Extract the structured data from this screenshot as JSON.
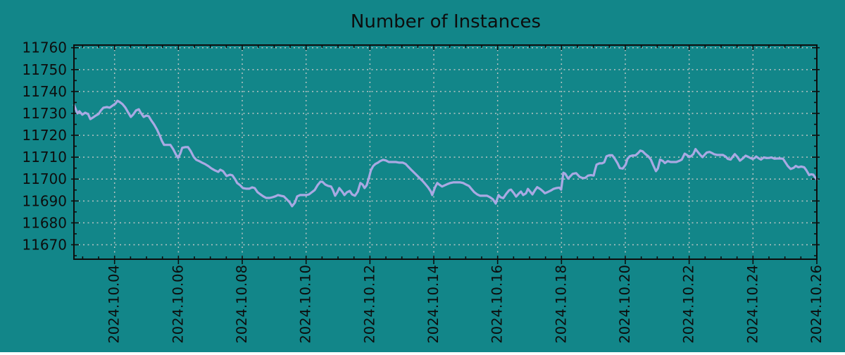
{
  "figure": {
    "background_color": "#128689",
    "axis_color": "#0d0d0d",
    "grid_color": "#b9c4c3",
    "text_color": "#0d0d0d"
  },
  "chart_data": {
    "type": "line",
    "title": "Number of Instances",
    "xlabel": "",
    "ylabel": "",
    "legend": "none",
    "grid": "dashed",
    "x_unit": "date, October 2024 (fractional day of month)",
    "x_tick_days": [
      4,
      6,
      8,
      10,
      12,
      14,
      16,
      18,
      20,
      22,
      24,
      26
    ],
    "x_tick_labels": [
      "2024.10.04",
      "2024.10.06",
      "2024.10.08",
      "2024.10.10",
      "2024.10.12",
      "2024.10.14",
      "2024.10.16",
      "2024.10.18",
      "2024.10.20",
      "2024.10.22",
      "2024.10.24",
      "2024.10.26"
    ],
    "x_minor_tick_interval_days": 0.5,
    "xlim_days": [
      2.727,
      26.0
    ],
    "y_ticks": [
      11670,
      11680,
      11690,
      11700,
      11710,
      11720,
      11730,
      11740,
      11750,
      11760
    ],
    "y_minor_tick_interval": 5,
    "ylim": [
      11663.4,
      11761.2
    ],
    "series": [
      {
        "name": "Number of Instances",
        "color": "#a9a9e3",
        "points": [
          [
            2.73,
            11733.8
          ],
          [
            2.84,
            11730.0
          ],
          [
            2.9,
            11731.0
          ],
          [
            2.99,
            11729.4
          ],
          [
            3.08,
            11730.3
          ],
          [
            3.17,
            11729.7
          ],
          [
            3.24,
            11727.4
          ],
          [
            3.32,
            11728.1
          ],
          [
            3.41,
            11729.0
          ],
          [
            3.5,
            11729.7
          ],
          [
            3.57,
            11731.3
          ],
          [
            3.65,
            11732.6
          ],
          [
            3.76,
            11732.9
          ],
          [
            3.85,
            11732.6
          ],
          [
            3.94,
            11733.6
          ],
          [
            4.03,
            11734.5
          ],
          [
            4.09,
            11735.8
          ],
          [
            4.16,
            11735.2
          ],
          [
            4.25,
            11734.2
          ],
          [
            4.34,
            11732.6
          ],
          [
            4.43,
            11730.3
          ],
          [
            4.51,
            11728.4
          ],
          [
            4.58,
            11729.4
          ],
          [
            4.67,
            11731.3
          ],
          [
            4.76,
            11731.9
          ],
          [
            4.82,
            11730.3
          ],
          [
            4.91,
            11728.4
          ],
          [
            5.0,
            11729.0
          ],
          [
            5.07,
            11728.7
          ],
          [
            5.15,
            11726.8
          ],
          [
            5.24,
            11724.9
          ],
          [
            5.33,
            11722.6
          ],
          [
            5.42,
            11719.7
          ],
          [
            5.48,
            11717.5
          ],
          [
            5.55,
            11715.6
          ],
          [
            5.66,
            11715.6
          ],
          [
            5.75,
            11715.6
          ],
          [
            5.84,
            11713.6
          ],
          [
            5.93,
            11711.0
          ],
          [
            5.99,
            11709.7
          ],
          [
            6.06,
            11711.7
          ],
          [
            6.12,
            11714.3
          ],
          [
            6.21,
            11714.6
          ],
          [
            6.3,
            11714.6
          ],
          [
            6.39,
            11712.7
          ],
          [
            6.48,
            11710.1
          ],
          [
            6.56,
            11708.8
          ],
          [
            6.65,
            11708.2
          ],
          [
            6.74,
            11707.5
          ],
          [
            6.83,
            11706.9
          ],
          [
            6.94,
            11705.9
          ],
          [
            7.03,
            11704.9
          ],
          [
            7.14,
            11704.0
          ],
          [
            7.25,
            11703.3
          ],
          [
            7.31,
            11704.3
          ],
          [
            7.4,
            11703.6
          ],
          [
            7.51,
            11701.4
          ],
          [
            7.62,
            11702.0
          ],
          [
            7.69,
            11701.7
          ],
          [
            7.78,
            11699.8
          ],
          [
            7.84,
            11698.2
          ],
          [
            7.93,
            11697.2
          ],
          [
            8.02,
            11695.9
          ],
          [
            8.13,
            11695.6
          ],
          [
            8.22,
            11695.6
          ],
          [
            8.31,
            11696.2
          ],
          [
            8.39,
            11695.9
          ],
          [
            8.48,
            11694.0
          ],
          [
            8.57,
            11693.0
          ],
          [
            8.66,
            11692.1
          ],
          [
            8.75,
            11691.4
          ],
          [
            8.86,
            11691.4
          ],
          [
            8.95,
            11691.7
          ],
          [
            9.03,
            11692.1
          ],
          [
            9.12,
            11692.7
          ],
          [
            9.21,
            11692.4
          ],
          [
            9.3,
            11692.1
          ],
          [
            9.39,
            11690.8
          ],
          [
            9.48,
            11689.5
          ],
          [
            9.56,
            11687.6
          ],
          [
            9.65,
            11689.2
          ],
          [
            9.72,
            11692.1
          ],
          [
            9.81,
            11692.7
          ],
          [
            9.92,
            11692.7
          ],
          [
            10.01,
            11692.7
          ],
          [
            10.09,
            11693.0
          ],
          [
            10.18,
            11694.0
          ],
          [
            10.27,
            11695.0
          ],
          [
            10.36,
            11697.2
          ],
          [
            10.45,
            11698.8
          ],
          [
            10.51,
            11698.8
          ],
          [
            10.6,
            11697.5
          ],
          [
            10.69,
            11696.9
          ],
          [
            10.78,
            11696.6
          ],
          [
            10.84,
            11695.0
          ],
          [
            10.91,
            11692.4
          ],
          [
            10.98,
            11694.0
          ],
          [
            11.04,
            11695.9
          ],
          [
            11.13,
            11694.3
          ],
          [
            11.2,
            11692.7
          ],
          [
            11.28,
            11694.0
          ],
          [
            11.37,
            11694.6
          ],
          [
            11.44,
            11693.0
          ],
          [
            11.53,
            11692.4
          ],
          [
            11.62,
            11694.3
          ],
          [
            11.7,
            11698.2
          ],
          [
            11.77,
            11697.5
          ],
          [
            11.83,
            11695.9
          ],
          [
            11.9,
            11697.2
          ],
          [
            11.97,
            11700.7
          ],
          [
            12.03,
            11704.0
          ],
          [
            12.1,
            11705.9
          ],
          [
            12.17,
            11706.9
          ],
          [
            12.25,
            11707.5
          ],
          [
            12.32,
            11708.2
          ],
          [
            12.41,
            11708.8
          ],
          [
            12.5,
            11708.5
          ],
          [
            12.59,
            11707.8
          ],
          [
            12.7,
            11707.8
          ],
          [
            12.81,
            11707.8
          ],
          [
            12.92,
            11707.5
          ],
          [
            13.03,
            11707.5
          ],
          [
            13.12,
            11706.9
          ],
          [
            13.2,
            11705.6
          ],
          [
            13.29,
            11704.3
          ],
          [
            13.38,
            11703.0
          ],
          [
            13.47,
            11701.7
          ],
          [
            13.56,
            11700.4
          ],
          [
            13.65,
            11699.1
          ],
          [
            13.73,
            11697.8
          ],
          [
            13.82,
            11696.2
          ],
          [
            13.91,
            11694.3
          ],
          [
            13.95,
            11692.7
          ],
          [
            14.04,
            11696.2
          ],
          [
            14.11,
            11698.2
          ],
          [
            14.17,
            11697.5
          ],
          [
            14.26,
            11696.6
          ],
          [
            14.35,
            11697.2
          ],
          [
            14.44,
            11697.8
          ],
          [
            14.52,
            11698.2
          ],
          [
            14.61,
            11698.5
          ],
          [
            14.72,
            11698.5
          ],
          [
            14.83,
            11698.5
          ],
          [
            14.92,
            11698.2
          ],
          [
            15.01,
            11697.5
          ],
          [
            15.1,
            11696.9
          ],
          [
            15.19,
            11695.3
          ],
          [
            15.27,
            11694.0
          ],
          [
            15.36,
            11693.0
          ],
          [
            15.45,
            11692.4
          ],
          [
            15.56,
            11692.4
          ],
          [
            15.67,
            11692.4
          ],
          [
            15.76,
            11691.7
          ],
          [
            15.85,
            11690.8
          ],
          [
            15.94,
            11688.8
          ],
          [
            16.03,
            11692.7
          ],
          [
            16.09,
            11691.7
          ],
          [
            16.18,
            11691.3
          ],
          [
            16.27,
            11693.3
          ],
          [
            16.36,
            11694.9
          ],
          [
            16.42,
            11695.2
          ],
          [
            16.51,
            11693.5
          ],
          [
            16.58,
            11692.0
          ],
          [
            16.67,
            11693.5
          ],
          [
            16.73,
            11694.3
          ],
          [
            16.8,
            11692.7
          ],
          [
            16.89,
            11693.5
          ],
          [
            16.95,
            11695.5
          ],
          [
            17.02,
            11694.3
          ],
          [
            17.09,
            11693.0
          ],
          [
            17.17,
            11694.9
          ],
          [
            17.24,
            11696.3
          ],
          [
            17.33,
            11695.5
          ],
          [
            17.42,
            11694.4
          ],
          [
            17.48,
            11693.5
          ],
          [
            17.57,
            11694.1
          ],
          [
            17.66,
            11694.7
          ],
          [
            17.75,
            11695.5
          ],
          [
            17.84,
            11695.9
          ],
          [
            17.93,
            11696.1
          ],
          [
            17.99,
            11695.2
          ],
          [
            18.06,
            11702.9
          ],
          [
            18.12,
            11702.4
          ],
          [
            18.21,
            11700.2
          ],
          [
            18.28,
            11701.3
          ],
          [
            18.35,
            11702.4
          ],
          [
            18.46,
            11702.7
          ],
          [
            18.57,
            11701.0
          ],
          [
            18.66,
            11700.5
          ],
          [
            18.74,
            11700.5
          ],
          [
            18.83,
            11701.6
          ],
          [
            18.92,
            11701.8
          ],
          [
            19.01,
            11701.6
          ],
          [
            19.05,
            11704.0
          ],
          [
            19.1,
            11706.6
          ],
          [
            19.19,
            11707.2
          ],
          [
            19.27,
            11707.2
          ],
          [
            19.34,
            11707.7
          ],
          [
            19.41,
            11710.4
          ],
          [
            19.5,
            11710.9
          ],
          [
            19.59,
            11710.9
          ],
          [
            19.67,
            11709.3
          ],
          [
            19.76,
            11707.2
          ],
          [
            19.83,
            11705.0
          ],
          [
            19.92,
            11704.8
          ],
          [
            20.01,
            11706.6
          ],
          [
            20.07,
            11709.3
          ],
          [
            20.14,
            11710.4
          ],
          [
            20.23,
            11710.8
          ],
          [
            20.32,
            11710.8
          ],
          [
            20.41,
            11712.0
          ],
          [
            20.47,
            11713.0
          ],
          [
            20.54,
            11712.7
          ],
          [
            20.63,
            11711.4
          ],
          [
            20.72,
            11710.4
          ],
          [
            20.8,
            11708.9
          ],
          [
            20.87,
            11706.5
          ],
          [
            20.96,
            11703.6
          ],
          [
            21.02,
            11704.8
          ],
          [
            21.09,
            11708.9
          ],
          [
            21.18,
            11708.2
          ],
          [
            21.24,
            11707.3
          ],
          [
            21.33,
            11708.2
          ],
          [
            21.42,
            11707.8
          ],
          [
            21.51,
            11707.8
          ],
          [
            21.6,
            11707.8
          ],
          [
            21.69,
            11708.3
          ],
          [
            21.77,
            11708.9
          ],
          [
            21.86,
            11711.6
          ],
          [
            21.93,
            11711.0
          ],
          [
            22.0,
            11710.0
          ],
          [
            22.06,
            11710.5
          ],
          [
            22.13,
            11711.4
          ],
          [
            22.2,
            11713.7
          ],
          [
            22.26,
            11712.6
          ],
          [
            22.35,
            11711.0
          ],
          [
            22.42,
            11710.0
          ],
          [
            22.48,
            11711.0
          ],
          [
            22.55,
            11712.1
          ],
          [
            22.64,
            11712.4
          ],
          [
            22.73,
            11711.8
          ],
          [
            22.79,
            11711.3
          ],
          [
            22.88,
            11711.0
          ],
          [
            22.97,
            11711.0
          ],
          [
            23.06,
            11711.0
          ],
          [
            23.15,
            11710.2
          ],
          [
            23.21,
            11709.2
          ],
          [
            23.3,
            11708.9
          ],
          [
            23.39,
            11710.7
          ],
          [
            23.43,
            11711.4
          ],
          [
            23.5,
            11710.3
          ],
          [
            23.59,
            11708.4
          ],
          [
            23.68,
            11709.4
          ],
          [
            23.77,
            11710.7
          ],
          [
            23.83,
            11710.3
          ],
          [
            23.92,
            11709.6
          ],
          [
            23.99,
            11709.2
          ],
          [
            24.05,
            11709.6
          ],
          [
            24.1,
            11710.3
          ],
          [
            24.19,
            11709.4
          ],
          [
            24.25,
            11708.9
          ],
          [
            24.34,
            11709.9
          ],
          [
            24.43,
            11709.6
          ],
          [
            24.52,
            11709.7
          ],
          [
            24.58,
            11709.9
          ],
          [
            24.67,
            11709.3
          ],
          [
            24.76,
            11709.4
          ],
          [
            24.85,
            11709.4
          ],
          [
            24.94,
            11709.3
          ],
          [
            25.03,
            11707.3
          ],
          [
            25.09,
            11706.0
          ],
          [
            25.18,
            11704.6
          ],
          [
            25.27,
            11705.1
          ],
          [
            25.34,
            11706.0
          ],
          [
            25.42,
            11705.4
          ],
          [
            25.51,
            11705.7
          ],
          [
            25.6,
            11705.4
          ],
          [
            25.67,
            11704.1
          ],
          [
            25.76,
            11701.8
          ],
          [
            25.82,
            11702.2
          ],
          [
            25.89,
            11702.0
          ],
          [
            25.96,
            11700.4
          ],
          [
            26.0,
            11699.8
          ]
        ]
      }
    ]
  }
}
